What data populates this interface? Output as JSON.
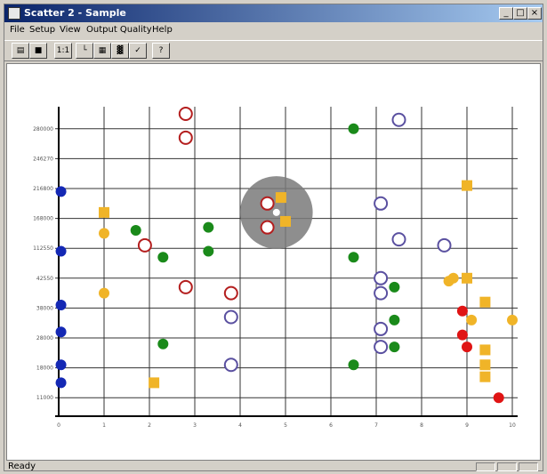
{
  "window": {
    "title": "Scatter 2 - Sample"
  },
  "menu": [
    "File",
    "Setup",
    "View",
    "Output Quality",
    "Help"
  ],
  "toolbar": [
    {
      "icon": "open-folder-icon",
      "glyph": "▤"
    },
    {
      "icon": "save-disk-icon",
      "glyph": "■"
    },
    {
      "icon": "zoom-icon",
      "glyph": "1:1"
    },
    {
      "icon": "line-chart-icon",
      "glyph": "└"
    },
    {
      "icon": "grid-icon",
      "glyph": "▦"
    },
    {
      "icon": "bar-icon",
      "glyph": "▓"
    },
    {
      "icon": "chart-check-icon",
      "glyph": "✓"
    },
    {
      "icon": "help-icon",
      "glyph": "?"
    }
  ],
  "status": {
    "text": "Ready"
  },
  "chart_data": {
    "type": "scatter",
    "title": "",
    "xlabel": "",
    "ylabel": "",
    "xlim": [
      0,
      10
    ],
    "ylim": [
      0,
      10
    ],
    "grid": true,
    "y_tick_labels": [
      "11000",
      "18000",
      "28000",
      "38000",
      "42550",
      "112550",
      "168000",
      "216800",
      "246270",
      "280000"
    ],
    "x_tick_labels": [
      "0",
      "1",
      "2",
      "3",
      "4",
      "5",
      "6",
      "7",
      "8",
      "9",
      "10"
    ],
    "highlight": {
      "x": 4.8,
      "y": 6.7,
      "radius": 0.8,
      "color": "#7a7a7a"
    },
    "series": [
      {
        "color": "#1428b4",
        "marker": "filled-circle",
        "points": [
          [
            0.05,
            7.4
          ],
          [
            0.05,
            5.4
          ],
          [
            0.05,
            3.6
          ],
          [
            0.05,
            2.7
          ],
          [
            0.05,
            1.6
          ],
          [
            0.05,
            1.0
          ]
        ]
      },
      {
        "color": "#1a8a1a",
        "marker": "filled-circle",
        "points": [
          [
            1.7,
            6.1
          ],
          [
            2.3,
            5.2
          ],
          [
            3.3,
            6.2
          ],
          [
            3.3,
            5.4
          ],
          [
            6.5,
            9.5
          ],
          [
            6.5,
            5.2
          ],
          [
            7.4,
            4.2
          ],
          [
            7.4,
            3.1
          ],
          [
            7.4,
            2.2
          ],
          [
            6.5,
            1.6
          ],
          [
            2.3,
            2.3
          ]
        ]
      },
      {
        "color": "#f0b428",
        "marker": "filled-circle",
        "points": [
          [
            1.0,
            6.0
          ],
          [
            1.0,
            4.0
          ],
          [
            8.6,
            4.4
          ],
          [
            8.7,
            4.5
          ],
          [
            9.1,
            3.1
          ],
          [
            10.0,
            3.1
          ]
        ]
      },
      {
        "color": "#f0b428",
        "marker": "filled-square",
        "points": [
          [
            1.0,
            6.7
          ],
          [
            2.1,
            1.0
          ],
          [
            4.9,
            7.2
          ],
          [
            5.0,
            6.4
          ],
          [
            9.0,
            7.6
          ],
          [
            9.0,
            4.5
          ],
          [
            9.4,
            3.7
          ],
          [
            9.4,
            2.1
          ],
          [
            9.4,
            1.6
          ],
          [
            9.4,
            1.2
          ]
        ]
      },
      {
        "color": "#b41e1e",
        "marker": "ring",
        "points": [
          [
            2.8,
            10.0
          ],
          [
            2.8,
            9.2
          ],
          [
            1.9,
            5.6
          ],
          [
            2.8,
            4.2
          ],
          [
            3.8,
            4.0
          ],
          [
            4.6,
            7.0
          ],
          [
            4.6,
            6.2
          ]
        ]
      },
      {
        "color": "#5a50a0",
        "marker": "ring",
        "points": [
          [
            7.5,
            9.8
          ],
          [
            7.1,
            7.0
          ],
          [
            7.5,
            5.8
          ],
          [
            8.5,
            5.6
          ],
          [
            7.1,
            4.5
          ],
          [
            7.1,
            4.0
          ],
          [
            3.8,
            3.2
          ],
          [
            7.1,
            2.8
          ],
          [
            7.1,
            2.2
          ],
          [
            3.8,
            1.6
          ]
        ]
      },
      {
        "color": "#e01414",
        "marker": "filled-circle",
        "points": [
          [
            8.9,
            3.4
          ],
          [
            8.9,
            2.6
          ],
          [
            9.0,
            2.2
          ],
          [
            9.7,
            0.5
          ]
        ]
      }
    ]
  }
}
